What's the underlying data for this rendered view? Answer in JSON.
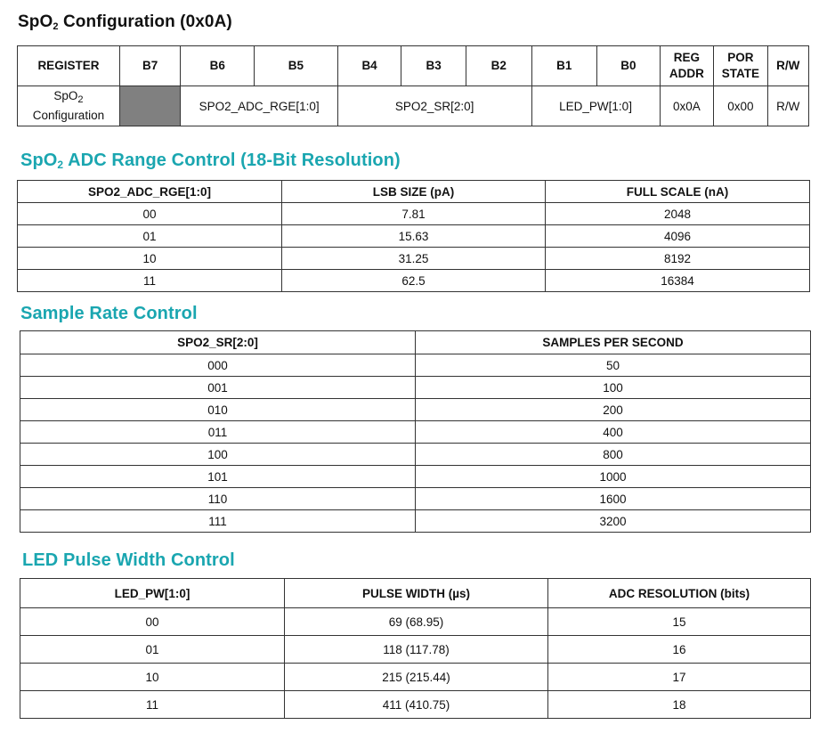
{
  "title": {
    "prefix": "SpO",
    "sub": "2",
    "suffix": " Configuration (0x0A)"
  },
  "register_table": {
    "headers": {
      "register": "REGISTER",
      "b7": "B7",
      "b6": "B6",
      "b5": "B5",
      "b4": "B4",
      "b3": "B3",
      "b2": "B2",
      "b1": "B1",
      "b0": "B0",
      "reg_addr_1": "REG",
      "reg_addr_2": "ADDR",
      "por_state_1": "POR",
      "por_state_2": "STATE",
      "rw": "R/W"
    },
    "row": {
      "register_name_prefix": "SpO",
      "register_name_sub": "2",
      "register_name_line2": "Configuration",
      "adc_rge": "SPO2_ADC_RGE[1:0]",
      "sr": "SPO2_SR[2:0]",
      "led_pw": "LED_PW[1:0]",
      "reg_addr": "0x0A",
      "por_state": "0x00",
      "rw": "R/W"
    }
  },
  "adc_section": {
    "title_prefix": "SpO",
    "title_sub": "2",
    "title_suffix": " ADC Range Control (18-Bit Resolution)",
    "headers": [
      "SPO2_ADC_RGE[1:0]",
      "LSB SIZE (pA)",
      "FULL SCALE (nA)"
    ],
    "rows": [
      [
        "00",
        "7.81",
        "2048"
      ],
      [
        "01",
        "15.63",
        "4096"
      ],
      [
        "10",
        "31.25",
        "8192"
      ],
      [
        "11",
        "62.5",
        "16384"
      ]
    ]
  },
  "sample_rate_section": {
    "title": "Sample Rate Control",
    "headers": [
      "SPO2_SR[2:0]",
      "SAMPLES PER SECOND"
    ],
    "rows": [
      [
        "000",
        "50"
      ],
      [
        "001",
        "100"
      ],
      [
        "010",
        "200"
      ],
      [
        "011",
        "400"
      ],
      [
        "100",
        "800"
      ],
      [
        "101",
        "1000"
      ],
      [
        "110",
        "1600"
      ],
      [
        "111",
        "3200"
      ]
    ]
  },
  "led_pw_section": {
    "title": "LED Pulse Width Control",
    "headers": [
      "LED_PW[1:0]",
      "PULSE WIDTH (µs)",
      "ADC RESOLUTION (bits)"
    ],
    "rows": [
      [
        "00",
        "69 (68.95)",
        "15"
      ],
      [
        "01",
        "118 (117.78)",
        "16"
      ],
      [
        "10",
        "215 (215.44)",
        "17"
      ],
      [
        "11",
        "411 (410.75)",
        "18"
      ]
    ]
  }
}
